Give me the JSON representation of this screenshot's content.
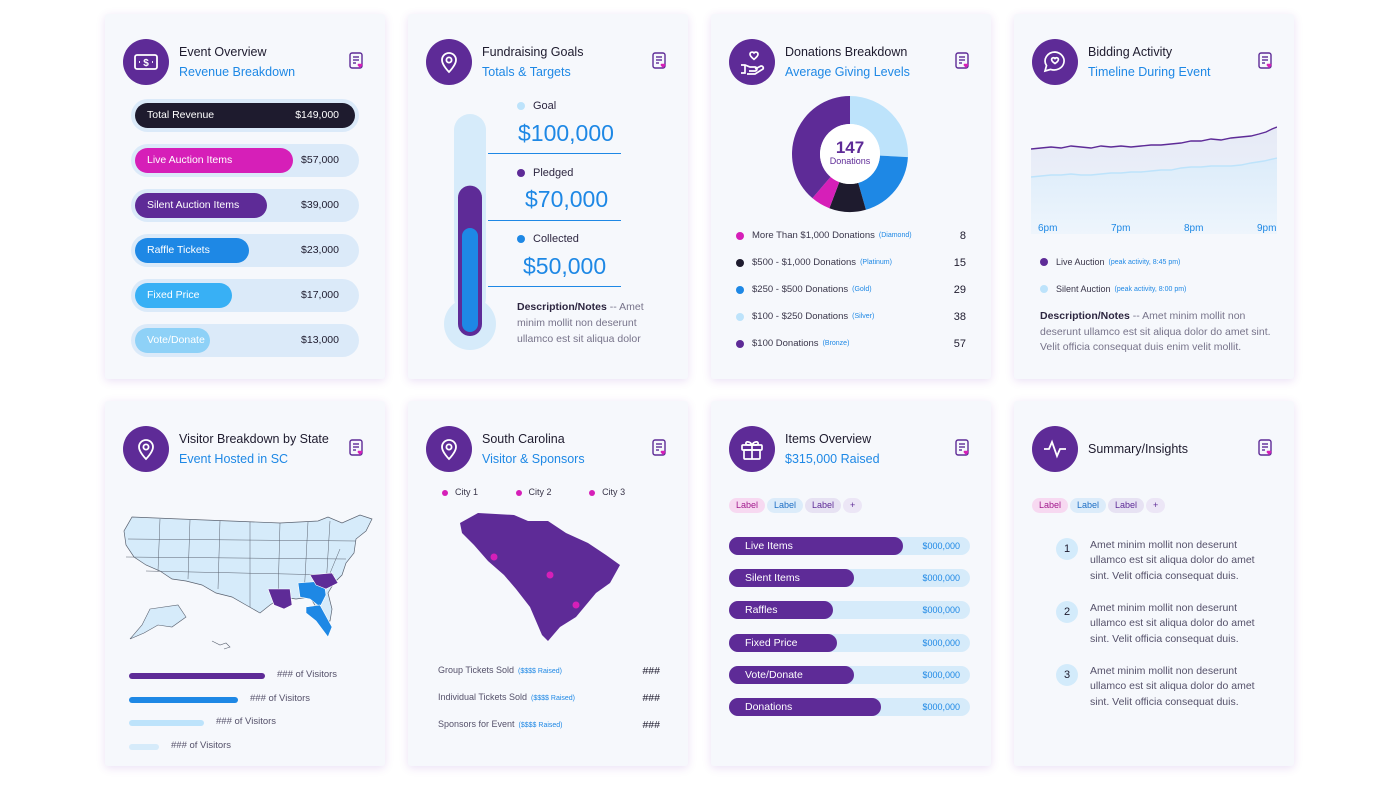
{
  "colors": {
    "purple": "#5e2b97",
    "magenta": "#d61fb8",
    "blue": "#1e88e5",
    "sky": "#38b0f5",
    "light": "#bde3fb",
    "dark": "#1e1b2e"
  },
  "event": {
    "title": "Event Overview",
    "subtitle": "Revenue Breakdown",
    "icon": "money-icon",
    "rows": [
      {
        "label": "Total Revenue",
        "value": "$149,000",
        "fill": 1.0
      },
      {
        "label": "Live Auction Items",
        "value": "$57,000",
        "fill": 0.72
      },
      {
        "label": "Silent Auction Items",
        "value": "$39,000",
        "fill": 0.6
      },
      {
        "label": "Raffle Tickets",
        "value": "$23,000",
        "fill": 0.52
      },
      {
        "label": "Fixed Price",
        "value": "$17,000",
        "fill": 0.44
      },
      {
        "label": "Vote/Donate",
        "value": "$13,000",
        "fill": 0.34
      }
    ]
  },
  "fundraising": {
    "title": "Fundraising Goals",
    "subtitle": "Totals & Targets",
    "icon": "location-pin-icon",
    "goal_label": "Goal",
    "goal": "$100,000",
    "pledged_label": "Pledged",
    "pledged": "$70,000",
    "collected_label": "Collected",
    "collected": "$50,000",
    "pledged_fraction": 0.7,
    "collected_fraction": 0.5,
    "note_label": "Description/Notes",
    "note": " -- Amet minim mollit non deserunt ullamco est sit aliqua dolor"
  },
  "donations": {
    "title": "Donations Breakdown",
    "subtitle": "Average Giving Levels",
    "icon": "hand-heart-icon",
    "total": "147",
    "total_label": "Donations",
    "rows": [
      {
        "label": "More Than $1,000 Donations",
        "tier": "(Diamond)",
        "count": "8",
        "color": "#d61fb8"
      },
      {
        "label": "$500 - $1,000 Donations",
        "tier": "(Platinum)",
        "count": "15",
        "color": "#1e1b2e"
      },
      {
        "label": "$250 - $500 Donations",
        "tier": "(Gold)",
        "count": "29",
        "color": "#1e88e5"
      },
      {
        "label": "$100 - $250 Donations",
        "tier": "(Silver)",
        "count": "38",
        "color": "#bde3fb"
      },
      {
        "label": "$100 Donations",
        "tier": "(Bronze)",
        "count": "57",
        "color": "#5e2b97"
      }
    ]
  },
  "bidding": {
    "title": "Bidding Activity",
    "subtitle": "Timeline During Event",
    "icon": "chat-heart-icon",
    "x_labels": [
      "6pm",
      "7pm",
      "8pm",
      "9pm"
    ],
    "series": [
      {
        "name": "Live Auction",
        "peak": "(peak activity, 8:45 pm)",
        "color": "#5e2b97"
      },
      {
        "name": "Silent Auction",
        "peak": "(peak activity, 8:00 pm)",
        "color": "#bde3fb"
      }
    ],
    "note_label": "Description/Notes",
    "note": " -- Amet minim mollit non deserunt ullamco est sit aliqua dolor do amet sint. Velit officia consequat duis enim velit mollit."
  },
  "visitor": {
    "title": "Visitor Breakdown by State",
    "subtitle": "Event Hosted in SC",
    "icon": "location-pin-icon",
    "bars": [
      {
        "label": "### of Visitors",
        "fraction": 1.0,
        "color": "#5e2b97"
      },
      {
        "label": "### of Visitors",
        "fraction": 0.8,
        "color": "#1e88e5"
      },
      {
        "label": "### of Visitors",
        "fraction": 0.55,
        "color": "#bde3fb"
      },
      {
        "label": "### of Visitors",
        "fraction": 0.22,
        "color": "#d6ebfa"
      }
    ]
  },
  "sc": {
    "title": "South Carolina",
    "subtitle": "Visitor & Sponsors",
    "icon": "location-pin-icon",
    "cities": [
      "City 1",
      "City 2",
      "City 3"
    ],
    "rows": [
      {
        "label": "Group Tickets Sold",
        "raised": "($$$$ Raised)",
        "value": "###"
      },
      {
        "label": "Individual Tickets Sold",
        "raised": "($$$$ Raised)",
        "value": "###"
      },
      {
        "label": "Sponsors for Event",
        "raised": "($$$$ Raised)",
        "value": "###"
      }
    ]
  },
  "items": {
    "title": "Items Overview",
    "subtitle": "$315,000 Raised",
    "icon": "gift-icon",
    "tags": [
      "Label",
      "Label",
      "Label",
      "+"
    ],
    "rows": [
      {
        "label": "Live Items",
        "value": "$000,000",
        "fill": 0.72
      },
      {
        "label": "Silent Items",
        "value": "$000,000",
        "fill": 0.52
      },
      {
        "label": "Raffles",
        "value": "$000,000",
        "fill": 0.43
      },
      {
        "label": "Fixed Price",
        "value": "$000,000",
        "fill": 0.45
      },
      {
        "label": "Vote/Donate",
        "value": "$000,000",
        "fill": 0.52
      },
      {
        "label": "Donations",
        "value": "$000,000",
        "fill": 0.63
      }
    ]
  },
  "summary": {
    "title": "Summary/Insights",
    "icon": "pulse-icon",
    "tags": [
      "Label",
      "Label",
      "Label",
      "+"
    ],
    "steps": [
      {
        "n": "1",
        "text": "Amet minim mollit non deserunt ullamco est sit aliqua dolor do amet sint. Velit officia consequat duis."
      },
      {
        "n": "2",
        "text": "Amet minim mollit non deserunt ullamco est sit aliqua dolor do amet sint. Velit officia consequat duis."
      },
      {
        "n": "3",
        "text": "Amet minim mollit non deserunt ullamco est sit aliqua dolor do amet sint. Velit officia consequat duis."
      }
    ]
  }
}
